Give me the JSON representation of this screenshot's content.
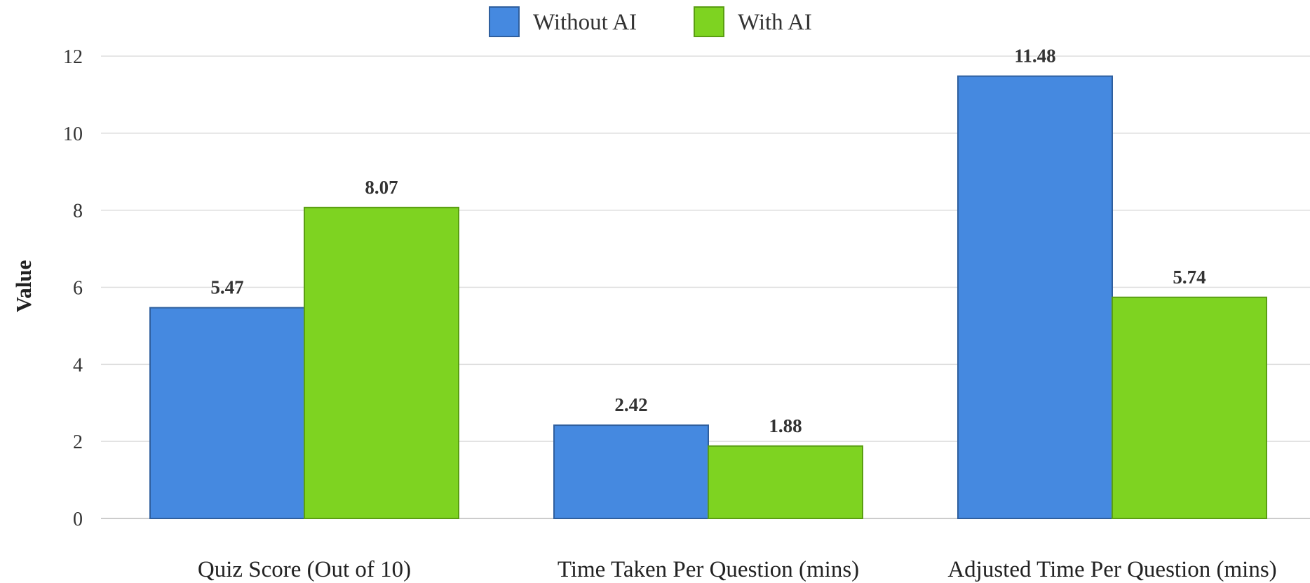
{
  "chart_data": {
    "type": "bar",
    "categories": [
      "Quiz Score (Out of 10)",
      "Time Taken Per Question (mins)",
      "Adjusted Time Per Question (mins)"
    ],
    "series": [
      {
        "name": "Without AI",
        "values": [
          5.47,
          2.42,
          11.48
        ],
        "color": "#4589e0",
        "stroke": "#2f5f9e"
      },
      {
        "name": "With AI",
        "values": [
          8.07,
          1.88,
          5.74
        ],
        "color": "#7ed321",
        "stroke": "#5a9e12"
      }
    ],
    "value_labels": [
      [
        "5.47",
        "2.42",
        "11.48"
      ],
      [
        "8.07",
        "1.88",
        "5.74"
      ]
    ],
    "xlabel": "",
    "ylabel": "Value",
    "ylim": [
      0,
      12
    ],
    "yticks": [
      0,
      2,
      4,
      6,
      8,
      10,
      12
    ],
    "grid": true,
    "legend_position": "top-center",
    "gridline_color": "#dddddd"
  }
}
